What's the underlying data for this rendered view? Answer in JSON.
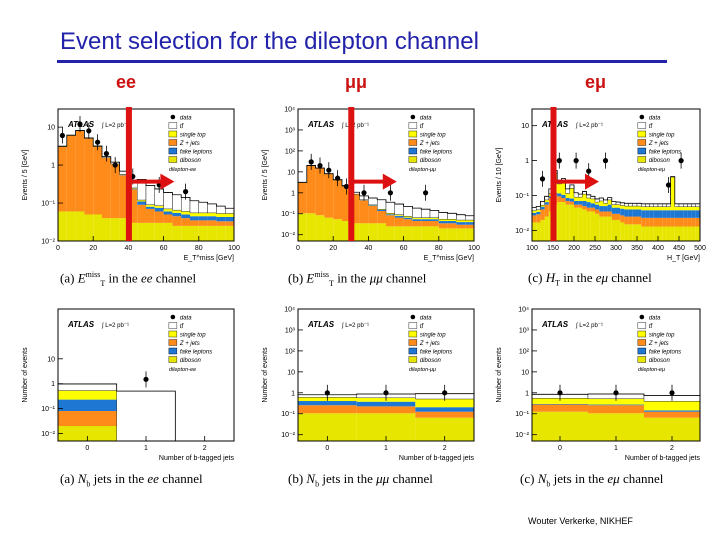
{
  "slide": {
    "title": "Event selection for the dilepton channel",
    "channels": [
      "ee",
      "μμ",
      "eμ"
    ],
    "footer": "Wouter Verkerke, NIKHEF"
  },
  "colors": {
    "title": "#2222aa",
    "cut": "#dd1111",
    "ttbar": "#ffffff",
    "single_top": "#ffff00",
    "z_jets": "#ff8c1a",
    "fake": "#1f77d4",
    "diboson": "#e6e600"
  },
  "legend": {
    "atlas": "ATLAS",
    "lumi": "L=2 pb⁻¹",
    "entries": [
      "data",
      "tt̄",
      "single top",
      "Z + jets",
      "fake leptons",
      "diboson"
    ]
  },
  "captions": [
    {
      "prefix": "(a)",
      "var": "E",
      "sub": "T",
      "sup": "miss",
      "suffix": "in the",
      "ch": "ee",
      "tail": "channel"
    },
    {
      "prefix": "(b)",
      "var": "E",
      "sub": "T",
      "sup": "miss",
      "suffix": "in the",
      "ch": "μμ",
      "tail": "channel"
    },
    {
      "prefix": "(c)",
      "var": "H",
      "sub": "T",
      "sup": "",
      "suffix": "in the",
      "ch": "eμ",
      "tail": "channel"
    },
    {
      "prefix": "(a)",
      "var": "N",
      "sub": "b",
      "sup": "",
      "suffix": "jets  in the",
      "ch": "ee",
      "tail": "channel"
    },
    {
      "prefix": "(b)",
      "var": "N",
      "sub": "b",
      "sup": "",
      "suffix": "jets  in the",
      "ch": "μμ",
      "tail": "channel"
    },
    {
      "prefix": "(c)",
      "var": "N",
      "sub": "b",
      "sup": "",
      "suffix": "jets  in the",
      "ch": "eμ",
      "tail": "channel"
    }
  ],
  "chart_data": [
    {
      "type": "bar",
      "label": "dilepton-ee",
      "title": "",
      "xlabel": "E_T^miss [GeV]",
      "ylabel": "Events / 5 [GeV]",
      "xlim": [
        0,
        100
      ],
      "yscale": "log",
      "ylim": [
        0.01,
        30
      ],
      "xticks": [
        0,
        20,
        40,
        60,
        80,
        100
      ],
      "yticks": [
        "10⁻²",
        "10⁻¹",
        "1",
        "10"
      ],
      "cut": 40,
      "bin_edges": [
        0,
        5,
        10,
        15,
        20,
        25,
        30,
        35,
        40,
        45,
        50,
        55,
        60,
        65,
        70,
        75,
        80,
        85,
        90,
        95,
        100
      ],
      "series": [
        {
          "name": "diboson",
          "values": [
            0.05,
            0.05,
            0.05,
            0.04,
            0.04,
            0.03,
            0.03,
            0.03,
            0.02,
            0.02,
            0.02,
            0.02,
            0.02,
            0.015,
            0.015,
            0.015,
            0.015,
            0.015,
            0.015,
            0.015
          ]
        },
        {
          "name": "Z + jets",
          "values": [
            3,
            6,
            8,
            5,
            3,
            1.5,
            1,
            0.5,
            0.2,
            0.06,
            0.04,
            0.03,
            0.02,
            0.02,
            0.015,
            0.01,
            0.01,
            0.01,
            0.008,
            0.008
          ]
        },
        {
          "name": "fake leptons",
          "values": [
            0.02,
            0.02,
            0.02,
            0.02,
            0.02,
            0.02,
            0.02,
            0.02,
            0.01,
            0.02,
            0.01,
            0.015,
            0.01,
            0.01,
            0.01,
            0.01,
            0.01,
            0.01,
            0.01,
            0.01
          ]
        },
        {
          "name": "single top",
          "values": [
            0.01,
            0.01,
            0.01,
            0.01,
            0.01,
            0.01,
            0.01,
            0.01,
            0.01,
            0.01,
            0.01,
            0.01,
            0.01,
            0.01,
            0.01,
            0.01,
            0.01,
            0.01,
            0.01,
            0.01
          ]
        },
        {
          "name": "tt̄",
          "values": [
            0.05,
            0.05,
            0.1,
            0.1,
            0.1,
            0.1,
            0.12,
            0.12,
            0.15,
            0.3,
            0.2,
            0.15,
            0.12,
            0.1,
            0.08,
            0.06,
            0.05,
            0.04,
            0.03,
            0.02
          ]
        }
      ],
      "data_points": {
        "x": [
          2.5,
          12.5,
          17.5,
          22.5,
          27.5,
          32.5,
          42.5,
          57.5,
          72.5
        ],
        "y": [
          6,
          12,
          8,
          4,
          2,
          1,
          0.5,
          0.3,
          0.2
        ]
      }
    },
    {
      "type": "bar",
      "label": "dilepton-μμ",
      "title": "",
      "xlabel": "E_T^miss [GeV]",
      "ylabel": "Events / 5 [GeV]",
      "xlim": [
        0,
        100
      ],
      "yscale": "log",
      "ylim": [
        0.005,
        10000
      ],
      "xticks": [
        0,
        20,
        40,
        60,
        80,
        100
      ],
      "yticks": [
        "10⁻²",
        "10⁻¹",
        "1",
        "10",
        "10²",
        "10³",
        "10⁴"
      ],
      "cut": 30,
      "bin_edges": [
        0,
        5,
        10,
        15,
        20,
        25,
        30,
        35,
        40,
        45,
        50,
        55,
        60,
        65,
        70,
        75,
        80,
        85,
        90,
        95,
        100
      ],
      "series": [
        {
          "name": "diboson",
          "values": [
            0.1,
            0.1,
            0.08,
            0.06,
            0.05,
            0.04,
            0.03,
            0.03,
            0.03,
            0.03,
            0.02,
            0.02,
            0.02,
            0.02,
            0.02,
            0.02,
            0.015,
            0.015,
            0.015,
            0.015
          ]
        },
        {
          "name": "Z + jets",
          "values": [
            3,
            20,
            15,
            8,
            4,
            2,
            0.8,
            0.4,
            0.2,
            0.1,
            0.06,
            0.04,
            0.03,
            0.02,
            0.02,
            0.02,
            0.015,
            0.015,
            0.01,
            0.01
          ]
        },
        {
          "name": "fake leptons",
          "values": [
            0.02,
            0.02,
            0.03,
            0.02,
            0.02,
            0.02,
            0.02,
            0.02,
            0.02,
            0.02,
            0.01,
            0.015,
            0.01,
            0.01,
            0.01,
            0.01,
            0.01,
            0.01,
            0.01,
            0.01
          ]
        },
        {
          "name": "single top",
          "values": [
            0.01,
            0.01,
            0.01,
            0.01,
            0.01,
            0.01,
            0.01,
            0.01,
            0.01,
            0.01,
            0.01,
            0.01,
            0.01,
            0.01,
            0.01,
            0.01,
            0.01,
            0.01,
            0.01,
            0.01
          ]
        },
        {
          "name": "tt̄",
          "values": [
            0.05,
            0.1,
            0.1,
            0.12,
            0.15,
            0.15,
            0.2,
            0.25,
            0.3,
            0.3,
            0.25,
            0.2,
            0.15,
            0.12,
            0.1,
            0.08,
            0.06,
            0.05,
            0.04,
            0.03
          ]
        }
      ],
      "data_points": {
        "x": [
          7.5,
          12.5,
          17.5,
          22.5,
          27.5,
          37.5,
          52.5,
          72.5
        ],
        "y": [
          30,
          20,
          12,
          5,
          2,
          1,
          1,
          1
        ]
      }
    },
    {
      "type": "bar",
      "label": "dilepton-eμ",
      "title": "",
      "xlabel": "H_T [GeV]",
      "ylabel": "Events / 10 [GeV]",
      "xlim": [
        100,
        500
      ],
      "yscale": "log",
      "ylim": [
        0.005,
        30
      ],
      "xticks": [
        100,
        150,
        200,
        250,
        300,
        350,
        400,
        450,
        500
      ],
      "yticks": [
        "10⁻²",
        "10⁻¹",
        "1",
        "10"
      ],
      "cut": 150,
      "bin_edges": [
        100,
        110,
        120,
        130,
        140,
        150,
        160,
        170,
        180,
        190,
        200,
        210,
        220,
        230,
        240,
        250,
        260,
        270,
        280,
        290,
        300,
        310,
        320,
        330,
        340,
        350,
        360,
        370,
        380,
        390,
        400,
        410,
        420,
        430,
        440,
        450,
        460,
        470,
        480,
        490,
        500
      ],
      "series": [
        {
          "name": "diboson",
          "values": [
            0.012,
            0.012,
            0.015,
            0.02,
            0.03,
            0.05,
            0.06,
            0.06,
            0.05,
            0.05,
            0.04,
            0.04,
            0.035,
            0.03,
            0.03,
            0.025,
            0.02,
            0.02,
            0.02,
            0.015,
            0.015,
            0.012,
            0.01,
            0.01,
            0.01,
            0.01,
            0.008,
            0.008,
            0.008,
            0.008,
            0.008,
            0.008,
            0.008,
            0.008,
            0.008,
            0.008,
            0.008,
            0.008,
            0.008,
            0.008
          ]
        },
        {
          "name": "Z + jets",
          "values": [
            0.01,
            0.012,
            0.02,
            0.03,
            0.05,
            0.05,
            0.03,
            0.02,
            0.015,
            0.012,
            0.01,
            0.01,
            0.01,
            0.01,
            0.01,
            0.01,
            0.01,
            0.01,
            0.01,
            0.01,
            0.01,
            0.01,
            0.01,
            0.01,
            0.01,
            0.01,
            0.01,
            0.01,
            0.01,
            0.01,
            0.01,
            0.01,
            0.01,
            0.01,
            0.01,
            0.01,
            0.01,
            0.01,
            0.01,
            0.01
          ]
        },
        {
          "name": "fake leptons",
          "values": [
            0.005,
            0.005,
            0.008,
            0.01,
            0.01,
            0.015,
            0.02,
            0.02,
            0.015,
            0.015,
            0.015,
            0.015,
            0.02,
            0.02,
            0.015,
            0.015,
            0.015,
            0.015,
            0.02,
            0.015,
            0.015,
            0.015,
            0.015,
            0.015,
            0.015,
            0.015,
            0.015,
            0.015,
            0.015,
            0.015,
            0.015,
            0.015,
            0.015,
            0.015,
            0.015,
            0.015,
            0.015,
            0.015,
            0.015,
            0.015
          ]
        },
        {
          "name": "single top",
          "values": [
            0.005,
            0.005,
            0.005,
            0.01,
            0.02,
            0.3,
            0.1,
            0.15,
            0.03,
            0.08,
            0.02,
            0.02,
            0.04,
            0.02,
            0.02,
            0.01,
            0.02,
            0.01,
            0.02,
            0.01,
            0.01,
            0.01,
            0.01,
            0.01,
            0.01,
            0.01,
            0.01,
            0.01,
            0.01,
            0.01,
            0.01,
            0.01,
            0.01,
            0.3,
            0.01,
            0.01,
            0.01,
            0.01,
            0.01,
            0.01
          ]
        },
        {
          "name": "tt̄",
          "values": [
            0.008,
            0.01,
            0.015,
            0.02,
            0.04,
            0.1,
            0.05,
            0.05,
            0.04,
            0.04,
            0.03,
            0.02,
            0.02,
            0.02,
            0.015,
            0.015,
            0.015,
            0.015,
            0.012,
            0.012,
            0.01,
            0.01,
            0.01,
            0.01,
            0.01,
            0.01,
            0.01,
            0.01,
            0.01,
            0.01,
            0.01,
            0.01,
            0.01,
            0.01,
            0.01,
            0.01,
            0.01,
            0.01,
            0.01,
            0.01
          ]
        }
      ],
      "data_points": {
        "x": [
          125,
          165,
          205,
          235,
          275,
          425,
          455
        ],
        "y": [
          0.3,
          1,
          1,
          0.5,
          1,
          0.2,
          1
        ]
      }
    },
    {
      "type": "bar",
      "label": "dilepton-ee",
      "title": "",
      "xlabel": "Number of b-tagged jets",
      "ylabel": "Number of events",
      "xlim": [
        -0.5,
        2.5
      ],
      "yscale": "log",
      "ylim": [
        0.005,
        1000
      ],
      "xticks": [
        0,
        1,
        2
      ],
      "yticks": [
        "10⁻²",
        "10⁻¹",
        "1",
        "10"
      ],
      "categories": [
        "0",
        "1",
        "≥2"
      ],
      "series": [
        {
          "name": "diboson",
          "values": [
            0.015,
            0,
            0
          ]
        },
        {
          "name": "Z + jets",
          "values": [
            0.06,
            0,
            0
          ]
        },
        {
          "name": "fake leptons",
          "values": [
            0.15,
            0,
            0
          ]
        },
        {
          "name": "single top",
          "values": [
            0.3,
            0,
            0
          ]
        },
        {
          "name": "tt̄",
          "values": [
            0.45,
            0.5,
            0
          ]
        }
      ],
      "data_points": {
        "x": [
          1
        ],
        "y": [
          1.5
        ]
      }
    },
    {
      "type": "bar",
      "label": "dilepton-μμ",
      "title": "",
      "xlabel": "Number of b-tagged jets",
      "ylabel": "Number of events",
      "xlim": [
        -0.5,
        2.5
      ],
      "yscale": "log",
      "ylim": [
        0.005,
        10000
      ],
      "xticks": [
        0,
        1,
        2
      ],
      "yticks": [
        "10⁻²",
        "10⁻¹",
        "1",
        "10",
        "10²",
        "10³",
        "10⁴"
      ],
      "categories": [
        "0",
        "1",
        "≥2"
      ],
      "series": [
        {
          "name": "diboson",
          "values": [
            0.1,
            0.1,
            0.06
          ]
        },
        {
          "name": "Z + jets",
          "values": [
            0.15,
            0.12,
            0.06
          ]
        },
        {
          "name": "fake leptons",
          "values": [
            0.15,
            0.15,
            0.08
          ]
        },
        {
          "name": "single top",
          "values": [
            0.2,
            0.2,
            0.3
          ]
        },
        {
          "name": "tt̄",
          "values": [
            0.2,
            0.3,
            0.4
          ]
        }
      ],
      "data_points": {
        "x": [
          0,
          1,
          2
        ],
        "y": [
          1,
          1,
          1
        ]
      }
    },
    {
      "type": "bar",
      "label": "dilepton-eμ",
      "title": "",
      "xlabel": "Number of b-tagged jets",
      "ylabel": "Number of events",
      "xlim": [
        -0.5,
        2.5
      ],
      "yscale": "log",
      "ylim": [
        0.005,
        10000
      ],
      "xticks": [
        0,
        1,
        2
      ],
      "yticks": [
        "10⁻²",
        "10⁻¹",
        "1",
        "10",
        "10²",
        "10³",
        "10⁴"
      ],
      "categories": [
        "0",
        "1",
        "≥2"
      ],
      "series": [
        {
          "name": "diboson",
          "values": [
            0.12,
            0.1,
            0.06
          ]
        },
        {
          "name": "Z + jets",
          "values": [
            0.15,
            0.15,
            0.06
          ]
        },
        {
          "name": "fake leptons",
          "values": [
            0.02,
            0.02,
            0.02
          ]
        },
        {
          "name": "single top",
          "values": [
            0.25,
            0.25,
            0.25
          ]
        },
        {
          "name": "tt̄",
          "values": [
            0.3,
            0.35,
            0.35
          ]
        }
      ],
      "data_points": {
        "x": [
          0,
          1,
          2
        ],
        "y": [
          1,
          1,
          1
        ]
      }
    }
  ]
}
